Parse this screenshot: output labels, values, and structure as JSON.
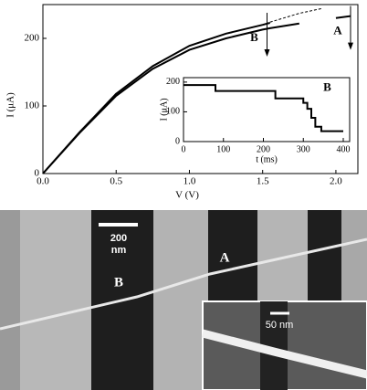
{
  "chart_data": [
    {
      "type": "line",
      "xlabel": "V (V)",
      "ylabel": "I (μA)",
      "x": [
        0,
        0.25,
        0.5,
        0.75,
        1.0,
        1.25,
        1.5,
        1.55,
        1.75,
        1.9,
        2.0,
        2.1
      ],
      "series": [
        {
          "color": "#000000",
          "style": "solid",
          "values": [
            0,
            60,
            115,
            155,
            183,
            200,
            213,
            215,
            222,
            null,
            230,
            233
          ]
        },
        {
          "color": "#000000",
          "style": "solid",
          "values": [
            0,
            61,
            118,
            159,
            189,
            207,
            220,
            223,
            null,
            null,
            null,
            null
          ]
        },
        {
          "color": "#000000",
          "style": "dashed",
          "values": [
            null,
            null,
            null,
            null,
            null,
            null,
            null,
            224,
            237,
            244,
            null,
            null
          ]
        }
      ],
      "xlim": [
        0,
        2.15
      ],
      "ylim": [
        0,
        250
      ],
      "xticks": [
        {
          "value": 0,
          "label": "0.0"
        },
        {
          "value": 0.5,
          "label": "0.5"
        },
        {
          "value": 1.0,
          "label": "1.0"
        },
        {
          "value": 1.5,
          "label": "1.5"
        },
        {
          "value": 2.0,
          "label": "2.0"
        }
      ],
      "yticks": [
        0,
        100,
        200
      ],
      "annotations": [
        {
          "text": "B",
          "x": 1.53,
          "y": 200
        },
        {
          "text": "A",
          "x": 2.1,
          "y": 210
        }
      ]
    },
    {
      "type": "line",
      "xlabel": "t (ms)",
      "ylabel": "I (μA)",
      "x": [
        0,
        80,
        80,
        230,
        230,
        300,
        300,
        310,
        310,
        320,
        320,
        330,
        330,
        345,
        345,
        400
      ],
      "series": [
        {
          "color": "#000000",
          "style": "solid",
          "values": [
            190,
            190,
            170,
            170,
            145,
            145,
            130,
            130,
            110,
            110,
            80,
            80,
            50,
            50,
            35,
            35
          ]
        }
      ],
      "xlim": [
        0,
        416
      ],
      "ylim": [
        0,
        215
      ],
      "xticks": [
        0,
        100,
        200,
        300,
        400
      ],
      "yticks": [
        0,
        100,
        200
      ],
      "annotations": [
        {
          "text": "B",
          "x": 360,
          "y": 180
        }
      ]
    }
  ],
  "micrograph": {
    "scale_bar": [
      "200",
      "nm"
    ],
    "markers": [
      "B",
      "A"
    ],
    "inset_scale_bar": "50 nm"
  }
}
